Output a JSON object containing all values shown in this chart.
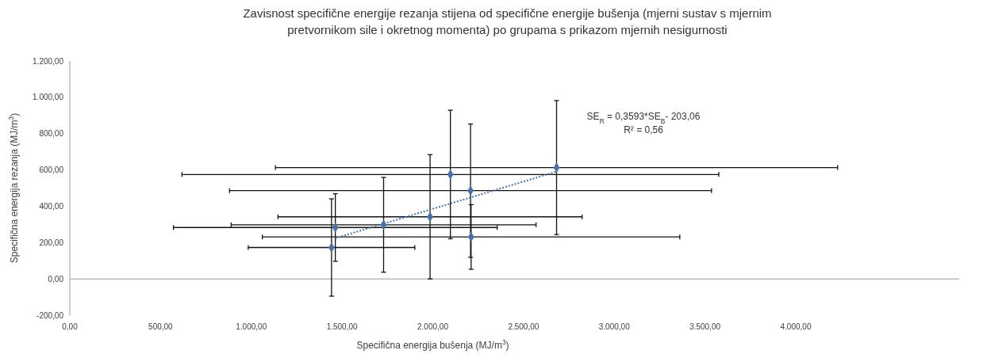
{
  "chart_data": {
    "type": "scatter",
    "title": "Zavisnost specifične energije rezanja stijena od specifične energije bušenja (mjerni sustav s mjernim pretvornikom sile i okretnog momenta) po grupama s prikazom mjernih nesigurnosti",
    "xlabel": "Specifična energija bušenja (MJ/m$^{3}$)",
    "ylabel": "Specifična energija rezanja (MJ/m$^{3}$)",
    "annotations": [
      "SE$_{R}$ = 0,3593*SE$_{B}$- 203,06",
      "R² = 0,56"
    ],
    "xlim": [
      0,
      4900
    ],
    "xticks": [
      {
        "value": 0,
        "label": "0,00"
      },
      {
        "value": 500,
        "label": "500,00"
      },
      {
        "value": 1000,
        "label": "1.000,00"
      },
      {
        "value": 1500,
        "label": "1.500,00"
      },
      {
        "value": 2000,
        "label": "2.000,00"
      },
      {
        "value": 2500,
        "label": "2.500,00"
      },
      {
        "value": 3000,
        "label": "3.000,00"
      },
      {
        "value": 3500,
        "label": "3.500,00"
      },
      {
        "value": 4000,
        "label": "4.000,00"
      }
    ],
    "ylim": [
      -200,
      1200
    ],
    "yticks": [
      {
        "value": -200,
        "label": "-200,00"
      },
      {
        "value": 0,
        "label": "0,00"
      },
      {
        "value": 200,
        "label": "200,00"
      },
      {
        "value": 400,
        "label": "400,00"
      },
      {
        "value": 600,
        "label": "600,00"
      },
      {
        "value": 800,
        "label": "800,00"
      },
      {
        "value": 1000,
        "label": "1.000,00"
      },
      {
        "value": 1200,
        "label": "1.200,00"
      }
    ],
    "series": [
      {
        "color": "#4a72a8",
        "marker": "diamond",
        "x": [
          1442,
          1463,
          1729,
          1985,
          2097,
          2208,
          2211,
          2682
        ],
        "values": [
          173,
          283,
          298,
          342,
          575,
          486,
          231,
          613
        ],
        "errors": [
          268,
          186,
          261,
          342,
          354,
          367,
          178,
          369
        ],
        "xerrors": [
          459,
          892,
          840,
          838,
          1479,
          1328,
          1150,
          1549
        ]
      },
      {
        "type": "line",
        "color": "#4a72a8",
        "line_style": "dotted",
        "x": [
          1463,
          2682
        ],
        "values": [
          224,
          591
        ]
      }
    ]
  }
}
